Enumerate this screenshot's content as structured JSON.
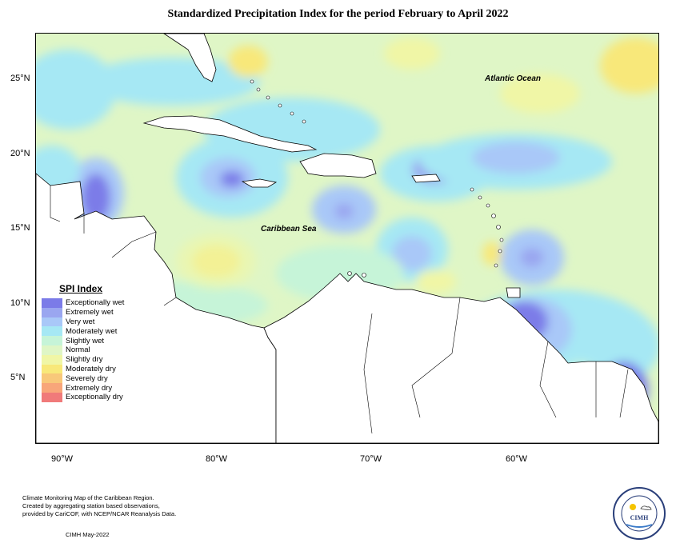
{
  "title": "Standardized Precipitation Index for the period February to April 2022",
  "map": {
    "lat_labels": [
      "25°N",
      "20°N",
      "15°N",
      "10°N",
      "5°N"
    ],
    "lon_labels": [
      "90°W",
      "80°W",
      "70°W",
      "60°W"
    ],
    "ocean_labels": {
      "atlantic": "Atlantic Ocean",
      "caribbean": "Caribbean Sea"
    }
  },
  "legend": {
    "title": "SPI Index",
    "items": [
      {
        "label": "Exceptionally wet",
        "color": "#7b7be8"
      },
      {
        "label": "Extremely wet",
        "color": "#9aa6f0"
      },
      {
        "label": "Very wet",
        "color": "#a9c8f8"
      },
      {
        "label": "Moderately wet",
        "color": "#a6e8f4"
      },
      {
        "label": "Slightly wet",
        "color": "#c6f4d8"
      },
      {
        "label": "Normal",
        "color": "#dff6c6"
      },
      {
        "label": "Slightly dry",
        "color": "#f0f6a6"
      },
      {
        "label": "Moderately dry",
        "color": "#f8e87a"
      },
      {
        "label": "Severely dry",
        "color": "#f8c87a"
      },
      {
        "label": "Extremely dry",
        "color": "#f8a67a"
      },
      {
        "label": "Exceptionally dry",
        "color": "#f07a7a"
      }
    ]
  },
  "footer": {
    "line1": "Climate Monitoring Map of the Caribbean Region.",
    "line2": "Created by aggregating station based observations,",
    "line3": "provided by CariCOF, with NCEP/NCAR Reanalysis Data.",
    "credit": "CIMH May-2022"
  },
  "logo": {
    "text": "CIMH"
  }
}
